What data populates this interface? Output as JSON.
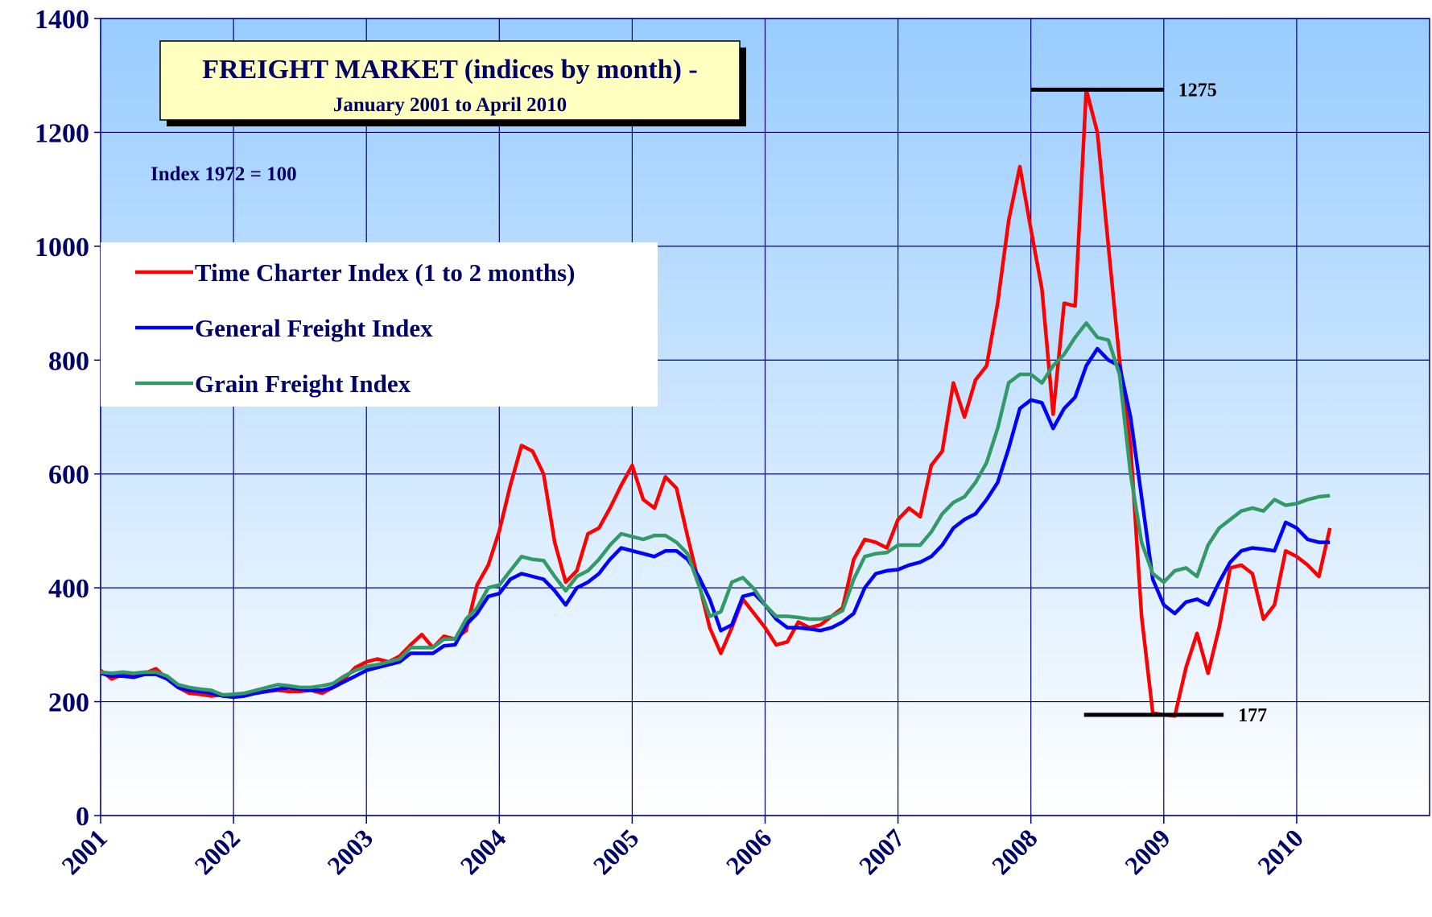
{
  "chart_data": {
    "type": "line",
    "title": "FREIGHT MARKET (indices by month) -",
    "subtitle": "January 2001 to April 2010",
    "note": "Index 1972 = 100",
    "annotations": [
      {
        "value": 1275
      },
      {
        "value": 177
      }
    ],
    "x": [
      2001,
      2001.083,
      2001.167,
      2001.25,
      2001.333,
      2001.417,
      2001.5,
      2001.583,
      2001.667,
      2001.75,
      2001.833,
      2001.917,
      2002,
      2002.083,
      2002.167,
      2002.25,
      2002.333,
      2002.417,
      2002.5,
      2002.583,
      2002.667,
      2002.75,
      2002.833,
      2002.917,
      2003,
      2003.083,
      2003.167,
      2003.25,
      2003.333,
      2003.417,
      2003.5,
      2003.583,
      2003.667,
      2003.75,
      2003.833,
      2003.917,
      2004,
      2004.083,
      2004.167,
      2004.25,
      2004.333,
      2004.417,
      2004.5,
      2004.583,
      2004.667,
      2004.75,
      2004.833,
      2004.917,
      2005,
      2005.083,
      2005.167,
      2005.25,
      2005.333,
      2005.417,
      2005.5,
      2005.583,
      2005.667,
      2005.75,
      2005.833,
      2005.917,
      2006,
      2006.083,
      2006.167,
      2006.25,
      2006.333,
      2006.417,
      2006.5,
      2006.583,
      2006.667,
      2006.75,
      2006.833,
      2006.917,
      2007,
      2007.083,
      2007.167,
      2007.25,
      2007.333,
      2007.417,
      2007.5,
      2007.583,
      2007.667,
      2007.75,
      2007.833,
      2007.917,
      2008,
      2008.083,
      2008.167,
      2008.25,
      2008.333,
      2008.417,
      2008.5,
      2008.583,
      2008.667,
      2008.75,
      2008.833,
      2008.917,
      2009,
      2009.083,
      2009.167,
      2009.25,
      2009.333,
      2009.417,
      2009.5,
      2009.583,
      2009.667,
      2009.75,
      2009.833,
      2009.917,
      2010,
      2010.083,
      2010.167,
      2010.25
    ],
    "series": [
      {
        "name": "Time Charter Index (1 to 2 months)",
        "color": "#ff0000",
        "values": [
          255,
          240,
          248,
          245,
          250,
          258,
          240,
          225,
          215,
          213,
          210,
          212,
          210,
          212,
          215,
          218,
          220,
          218,
          218,
          220,
          215,
          225,
          240,
          260,
          270,
          275,
          270,
          280,
          300,
          318,
          295,
          315,
          310,
          325,
          405,
          440,
          500,
          580,
          650,
          640,
          600,
          480,
          410,
          430,
          495,
          505,
          540,
          580,
          615,
          555,
          540,
          595,
          575,
          490,
          410,
          330,
          285,
          330,
          380,
          355,
          330,
          300,
          305,
          340,
          330,
          335,
          350,
          365,
          450,
          485,
          480,
          470,
          520,
          540,
          525,
          615,
          640,
          760,
          700,
          765,
          790,
          900,
          1045,
          1140,
          1030,
          925,
          705,
          900,
          895,
          1275,
          1200,
          1000,
          800,
          650,
          350,
          180,
          177,
          175,
          260,
          320,
          250,
          330,
          435,
          440,
          425,
          345,
          370,
          465,
          455,
          440,
          420,
          505
        ]
      },
      {
        "name": "General Freight Index",
        "color": "#0000ff",
        "values": [
          250,
          245,
          245,
          243,
          248,
          248,
          240,
          225,
          220,
          218,
          215,
          210,
          208,
          210,
          215,
          218,
          222,
          225,
          222,
          220,
          220,
          225,
          235,
          245,
          255,
          260,
          265,
          270,
          285,
          285,
          285,
          298,
          300,
          335,
          355,
          385,
          390,
          415,
          425,
          420,
          415,
          395,
          370,
          400,
          410,
          425,
          450,
          470,
          465,
          460,
          455,
          465,
          465,
          450,
          420,
          380,
          325,
          335,
          385,
          390,
          370,
          345,
          330,
          330,
          328,
          325,
          330,
          340,
          355,
          400,
          425,
          430,
          432,
          440,
          445,
          455,
          475,
          505,
          520,
          530,
          555,
          585,
          645,
          715,
          730,
          725,
          680,
          715,
          735,
          790,
          820,
          800,
          790,
          700,
          560,
          415,
          370,
          355,
          375,
          380,
          370,
          410,
          445,
          465,
          470,
          468,
          465,
          515,
          505,
          485,
          480,
          480
        ]
      },
      {
        "name": "Grain Freight Index",
        "color": "#339966",
        "values": [
          252,
          250,
          252,
          250,
          252,
          252,
          245,
          230,
          225,
          222,
          220,
          212,
          213,
          215,
          220,
          225,
          230,
          228,
          225,
          225,
          228,
          232,
          245,
          255,
          262,
          265,
          270,
          275,
          295,
          295,
          295,
          310,
          310,
          345,
          365,
          400,
          405,
          430,
          455,
          450,
          448,
          420,
          395,
          420,
          430,
          450,
          475,
          495,
          490,
          485,
          492,
          492,
          480,
          460,
          405,
          350,
          358,
          410,
          418,
          398,
          370,
          350,
          350,
          348,
          345,
          345,
          350,
          360,
          415,
          455,
          460,
          462,
          475,
          475,
          475,
          498,
          530,
          550,
          560,
          585,
          620,
          680,
          760,
          775,
          775,
          760,
          790,
          810,
          840,
          865,
          840,
          835,
          775,
          600,
          480,
          425,
          410,
          430,
          435,
          420,
          475,
          505,
          520,
          535,
          540,
          535,
          555,
          545,
          548,
          555,
          560,
          562
        ]
      }
    ],
    "xlim": [
      2001,
      2011
    ],
    "xticks": [
      2001,
      2002,
      2003,
      2004,
      2005,
      2006,
      2007,
      2008,
      2009,
      2010
    ],
    "ylim": [
      0,
      1400
    ],
    "yticks": [
      0,
      200,
      400,
      600,
      800,
      1000,
      1200,
      1400
    ],
    "grid": true,
    "legend": "upper left"
  }
}
